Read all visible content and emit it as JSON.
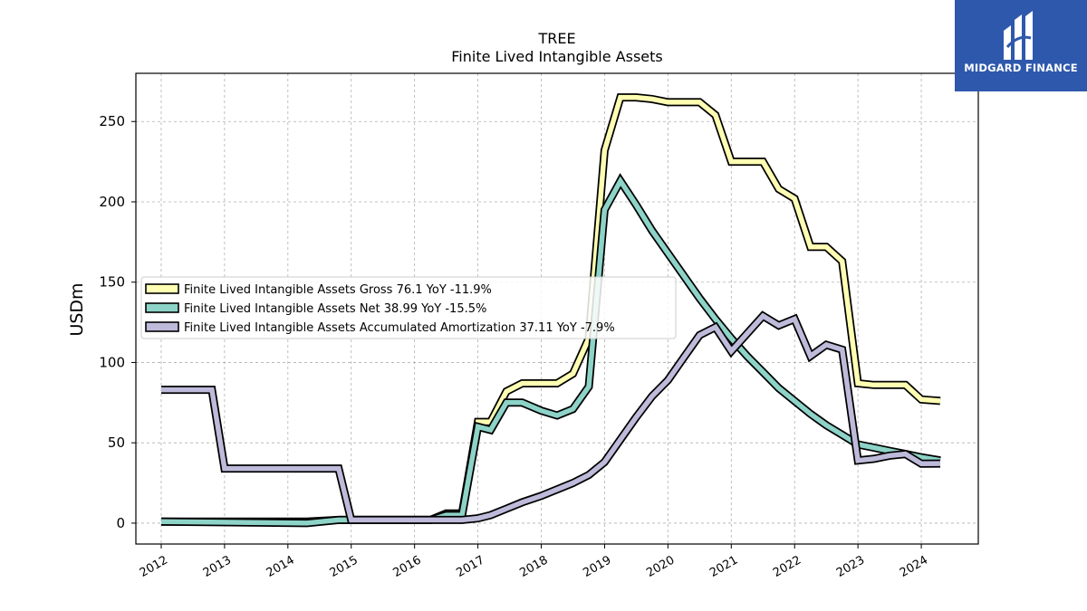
{
  "chart_data": {
    "type": "line",
    "title": "TREE",
    "subtitle": "Finite Lived Intangible Assets",
    "xlabel": "",
    "ylabel": "USDm",
    "xlim": [
      2011.6,
      2024.9
    ],
    "ylim": [
      -13,
      280
    ],
    "x_ticks": [
      2012,
      2013,
      2014,
      2015,
      2016,
      2017,
      2018,
      2019,
      2020,
      2021,
      2022,
      2023,
      2024
    ],
    "x_tick_labels": [
      "2012",
      "2013",
      "2014",
      "2015",
      "2016",
      "2017",
      "2018",
      "2019",
      "2020",
      "2021",
      "2022",
      "2023",
      "2024"
    ],
    "y_ticks": [
      0,
      50,
      100,
      150,
      200,
      250
    ],
    "y_tick_labels": [
      "0",
      "50",
      "100",
      "150",
      "200",
      "250"
    ],
    "grid": true,
    "legend_position": "center-left",
    "series": [
      {
        "name": "Finite Lived Intangible Assets Gross  76.1 YoY -11.9%",
        "color": "#ffffb3",
        "points": [
          [
            2012.0,
            1
          ],
          [
            2014.3,
            1
          ],
          [
            2014.8,
            2
          ],
          [
            2015.0,
            2
          ],
          [
            2016.25,
            2
          ],
          [
            2016.5,
            6
          ],
          [
            2016.75,
            6
          ],
          [
            2017.0,
            63
          ],
          [
            2017.2,
            63
          ],
          [
            2017.45,
            82
          ],
          [
            2017.7,
            87
          ],
          [
            2018.0,
            87
          ],
          [
            2018.25,
            87
          ],
          [
            2018.5,
            93
          ],
          [
            2018.75,
            115
          ],
          [
            2019.0,
            232
          ],
          [
            2019.25,
            265
          ],
          [
            2019.5,
            265
          ],
          [
            2019.75,
            264
          ],
          [
            2020.0,
            262
          ],
          [
            2020.25,
            262
          ],
          [
            2020.5,
            262
          ],
          [
            2020.75,
            254
          ],
          [
            2021.0,
            225
          ],
          [
            2021.25,
            225
          ],
          [
            2021.5,
            225
          ],
          [
            2021.75,
            208
          ],
          [
            2022.0,
            202
          ],
          [
            2022.25,
            172
          ],
          [
            2022.5,
            172
          ],
          [
            2022.75,
            163
          ],
          [
            2023.0,
            87
          ],
          [
            2023.25,
            86
          ],
          [
            2023.5,
            86
          ],
          [
            2023.75,
            86
          ],
          [
            2024.0,
            77
          ],
          [
            2024.3,
            76.1
          ]
        ]
      },
      {
        "name": "Finite Lived Intangible Assets Net  38.99 YoY -15.5%",
        "color": "#8dd3c7",
        "points": [
          [
            2012.0,
            1
          ],
          [
            2014.3,
            0
          ],
          [
            2014.8,
            2
          ],
          [
            2015.0,
            2
          ],
          [
            2016.25,
            2
          ],
          [
            2016.5,
            5
          ],
          [
            2016.75,
            5
          ],
          [
            2017.0,
            60
          ],
          [
            2017.2,
            58
          ],
          [
            2017.45,
            75
          ],
          [
            2017.7,
            75
          ],
          [
            2018.0,
            70
          ],
          [
            2018.25,
            67
          ],
          [
            2018.5,
            71
          ],
          [
            2018.75,
            85
          ],
          [
            2019.0,
            195
          ],
          [
            2019.25,
            213
          ],
          [
            2019.5,
            198
          ],
          [
            2019.75,
            182
          ],
          [
            2020.0,
            168
          ],
          [
            2020.25,
            154
          ],
          [
            2020.5,
            140
          ],
          [
            2020.75,
            127
          ],
          [
            2021.0,
            115
          ],
          [
            2021.25,
            104
          ],
          [
            2021.5,
            94
          ],
          [
            2021.75,
            84
          ],
          [
            2022.0,
            76
          ],
          [
            2022.25,
            68
          ],
          [
            2022.5,
            61
          ],
          [
            2022.75,
            55
          ],
          [
            2023.0,
            49
          ],
          [
            2023.25,
            47
          ],
          [
            2023.5,
            45
          ],
          [
            2023.75,
            43
          ],
          [
            2024.0,
            41
          ],
          [
            2024.3,
            38.99
          ]
        ]
      },
      {
        "name": "Finite Lived Intangible Assets Accumulated Amortization  37.11 YoY -7.9%",
        "color": "#bebada",
        "points": [
          [
            2012.0,
            83
          ],
          [
            2012.8,
            83
          ],
          [
            2013.0,
            34
          ],
          [
            2014.8,
            34
          ],
          [
            2015.0,
            2
          ],
          [
            2016.25,
            2
          ],
          [
            2016.75,
            2
          ],
          [
            2017.0,
            3
          ],
          [
            2017.2,
            5
          ],
          [
            2017.45,
            9
          ],
          [
            2017.7,
            13
          ],
          [
            2018.0,
            17
          ],
          [
            2018.25,
            21
          ],
          [
            2018.5,
            25
          ],
          [
            2018.75,
            30
          ],
          [
            2019.0,
            38
          ],
          [
            2019.25,
            52
          ],
          [
            2019.5,
            66
          ],
          [
            2019.75,
            79
          ],
          [
            2020.0,
            89
          ],
          [
            2020.25,
            103
          ],
          [
            2020.5,
            117
          ],
          [
            2020.75,
            122
          ],
          [
            2021.0,
            107
          ],
          [
            2021.25,
            118
          ],
          [
            2021.5,
            129
          ],
          [
            2021.75,
            123
          ],
          [
            2022.0,
            127
          ],
          [
            2022.25,
            104
          ],
          [
            2022.5,
            111
          ],
          [
            2022.75,
            108
          ],
          [
            2023.0,
            39
          ],
          [
            2023.25,
            40
          ],
          [
            2023.5,
            42
          ],
          [
            2023.75,
            43
          ],
          [
            2024.0,
            37
          ],
          [
            2024.3,
            37.11
          ]
        ]
      }
    ]
  },
  "logo": {
    "text": "MIDGARD FINANCE",
    "background": "#2e58ac"
  }
}
